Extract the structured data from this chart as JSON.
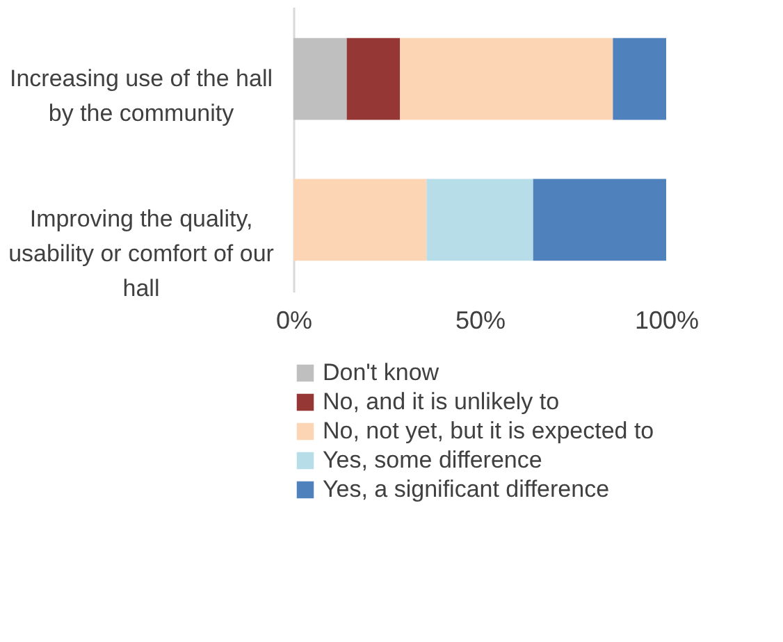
{
  "chart_data": {
    "type": "bar",
    "orientation": "horizontal",
    "stacked": true,
    "categories": [
      "Increasing use of the hall by the community",
      "Improving the quality, usability or comfort of our hall"
    ],
    "series": [
      {
        "name": "Don't know",
        "color": "#bfbfbf",
        "values": [
          0.143,
          0
        ]
      },
      {
        "name": "No, and it is unlikely to",
        "color": "#953735",
        "values": [
          0.143,
          0
        ]
      },
      {
        "name": "No, not yet, but it is expected to",
        "color": "#fcd5b5",
        "values": [
          0.571,
          0.357
        ]
      },
      {
        "name": "Yes, some difference",
        "color": "#b7dee8",
        "values": [
          0,
          0.286
        ]
      },
      {
        "name": "Yes, a significant difference",
        "color": "#4f81bd",
        "values": [
          0.143,
          0.357
        ]
      }
    ],
    "xlim": [
      0,
      1
    ],
    "xticks": [
      {
        "value": 0,
        "label": "0%"
      },
      {
        "value": 0.5,
        "label": "50%"
      },
      {
        "value": 1,
        "label": "100%"
      }
    ],
    "grid": false,
    "legend": "bottom"
  }
}
